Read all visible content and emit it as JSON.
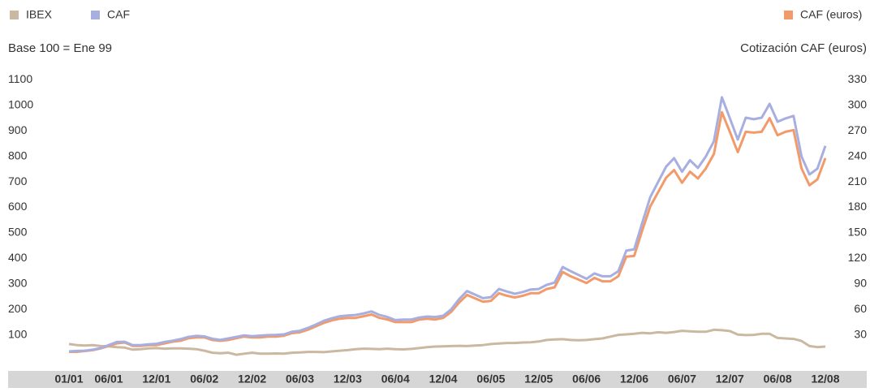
{
  "chart_data": {
    "type": "line",
    "subtitle": "Base 100 = Ene 99",
    "y2_label": "Cotización CAF (euros)",
    "categories": [
      "01/01",
      null,
      null,
      null,
      null,
      "06/01",
      null,
      null,
      null,
      null,
      null,
      "12/01",
      null,
      null,
      null,
      null,
      null,
      "06/02",
      null,
      null,
      null,
      null,
      null,
      "12/02",
      null,
      null,
      null,
      null,
      null,
      "06/03",
      null,
      null,
      null,
      null,
      null,
      "12/03",
      null,
      null,
      null,
      null,
      null,
      "06/04",
      null,
      null,
      null,
      null,
      null,
      "12/04",
      null,
      null,
      null,
      null,
      null,
      "06/05",
      null,
      null,
      null,
      null,
      null,
      "12/05",
      null,
      null,
      null,
      null,
      null,
      "06/06",
      null,
      null,
      null,
      null,
      null,
      "12/06",
      null,
      null,
      null,
      null,
      null,
      "06/07",
      null,
      null,
      null,
      null,
      null,
      "12/07",
      null,
      null,
      null,
      null,
      null,
      "06/08",
      null,
      null,
      null,
      null,
      null,
      "12/08"
    ],
    "series": [
      {
        "name": "IBEX",
        "color": "#cbb8a0",
        "values": [
          64,
          60,
          58,
          60,
          56,
          55,
          52,
          50,
          42,
          44,
          47,
          48,
          46,
          47,
          47,
          46,
          44,
          38,
          30,
          28,
          30,
          22,
          26,
          30,
          26,
          26,
          27,
          26,
          30,
          31,
          33,
          33,
          32,
          35,
          38,
          40,
          44,
          46,
          45,
          44,
          46,
          44,
          43,
          45,
          48,
          52,
          54,
          55,
          56,
          57,
          56,
          58,
          60,
          64,
          66,
          68,
          68,
          70,
          71,
          74,
          80,
          82,
          83,
          80,
          79,
          80,
          83,
          86,
          93,
          100,
          102,
          104,
          108,
          106,
          110,
          108,
          111,
          116,
          114,
          112,
          112,
          120,
          118,
          115,
          101,
          99,
          100,
          104,
          104,
          88,
          86,
          84,
          76,
          56,
          52,
          54
        ]
      },
      {
        "name": "CAF (euros)",
        "color": "#f29a6a",
        "axis": "y2",
        "values": [
          10,
          10,
          11,
          12,
          14,
          17,
          20,
          21,
          17,
          17,
          18,
          18,
          20,
          22,
          23,
          26,
          27,
          27,
          24,
          23,
          24,
          26,
          28,
          27,
          27,
          28,
          28,
          29,
          32,
          33,
          36,
          40,
          44,
          47,
          49,
          50,
          50,
          52,
          54,
          50,
          48,
          45,
          45,
          45,
          48,
          49,
          48,
          50,
          57,
          68,
          77,
          73,
          69,
          70,
          79,
          76,
          74,
          76,
          79,
          79,
          84,
          86,
          104,
          99,
          95,
          91,
          97,
          93,
          93,
          99,
          122,
          123,
          153,
          181,
          198,
          215,
          224,
          209,
          222,
          214,
          226,
          243,
          292,
          269,
          245,
          269,
          268,
          269,
          285,
          265,
          269,
          271,
          226,
          206,
          213,
          238
        ]
      },
      {
        "name": "CAF",
        "color": "#a7aee0",
        "values": [
          35,
          37,
          38,
          42,
          48,
          60,
          72,
          73,
          60,
          60,
          63,
          65,
          72,
          77,
          83,
          92,
          96,
          94,
          85,
          80,
          86,
          92,
          98,
          95,
          97,
          99,
          100,
          102,
          112,
          116,
          127,
          140,
          155,
          165,
          173,
          176,
          178,
          184,
          192,
          178,
          170,
          158,
          160,
          160,
          168,
          172,
          170,
          175,
          200,
          240,
          272,
          258,
          244,
          248,
          280,
          270,
          261,
          268,
          278,
          280,
          296,
          305,
          366,
          350,
          335,
          320,
          341,
          330,
          330,
          350,
          430,
          436,
          540,
          640,
          700,
          760,
          793,
          740,
          785,
          755,
          800,
          860,
          1032,
          950,
          866,
          952,
          946,
          952,
          1006,
          936,
          949,
          959,
          800,
          729,
          752,
          841
        ]
      }
    ],
    "ylim": [
      0,
      1100
    ],
    "yticks": [
      100,
      200,
      300,
      400,
      500,
      600,
      700,
      800,
      900,
      1000,
      1100
    ],
    "y2lim": [
      0,
      330
    ],
    "y2ticks": [
      30,
      60,
      90,
      120,
      150,
      180,
      210,
      240,
      270,
      300,
      330
    ]
  }
}
